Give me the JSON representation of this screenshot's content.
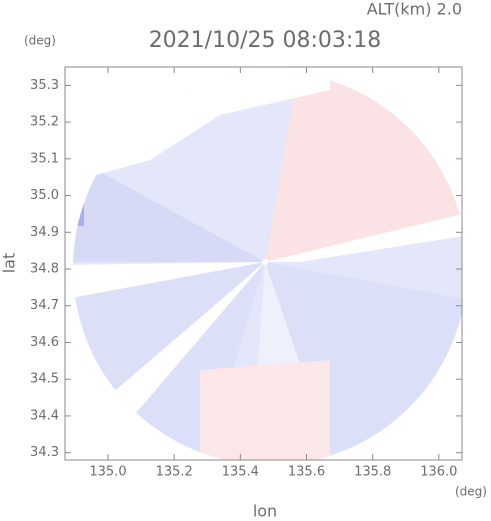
{
  "chart_data": {
    "type": "radar-map",
    "title": "2021/10/25 08:03:18",
    "subtitle": "ALT(km) 2.0",
    "x_unit": "(deg)",
    "y_unit": "(deg)",
    "x_label": "lon",
    "y_label": "lat",
    "xlim": [
      134.87,
      136.07
    ],
    "ylim": [
      34.28,
      35.35
    ],
    "xticks": [
      {
        "value": 135,
        "label": "135.0"
      },
      135.2,
      135.4,
      135.6,
      135.8,
      {
        "value": 136,
        "label": "136.0"
      }
    ],
    "yticks": [
      34.3,
      34.4,
      34.5,
      34.6,
      34.7,
      34.8,
      34.9,
      {
        "value": 35,
        "label": "35.0"
      },
      35.1,
      35.2,
      35.3
    ]
  }
}
